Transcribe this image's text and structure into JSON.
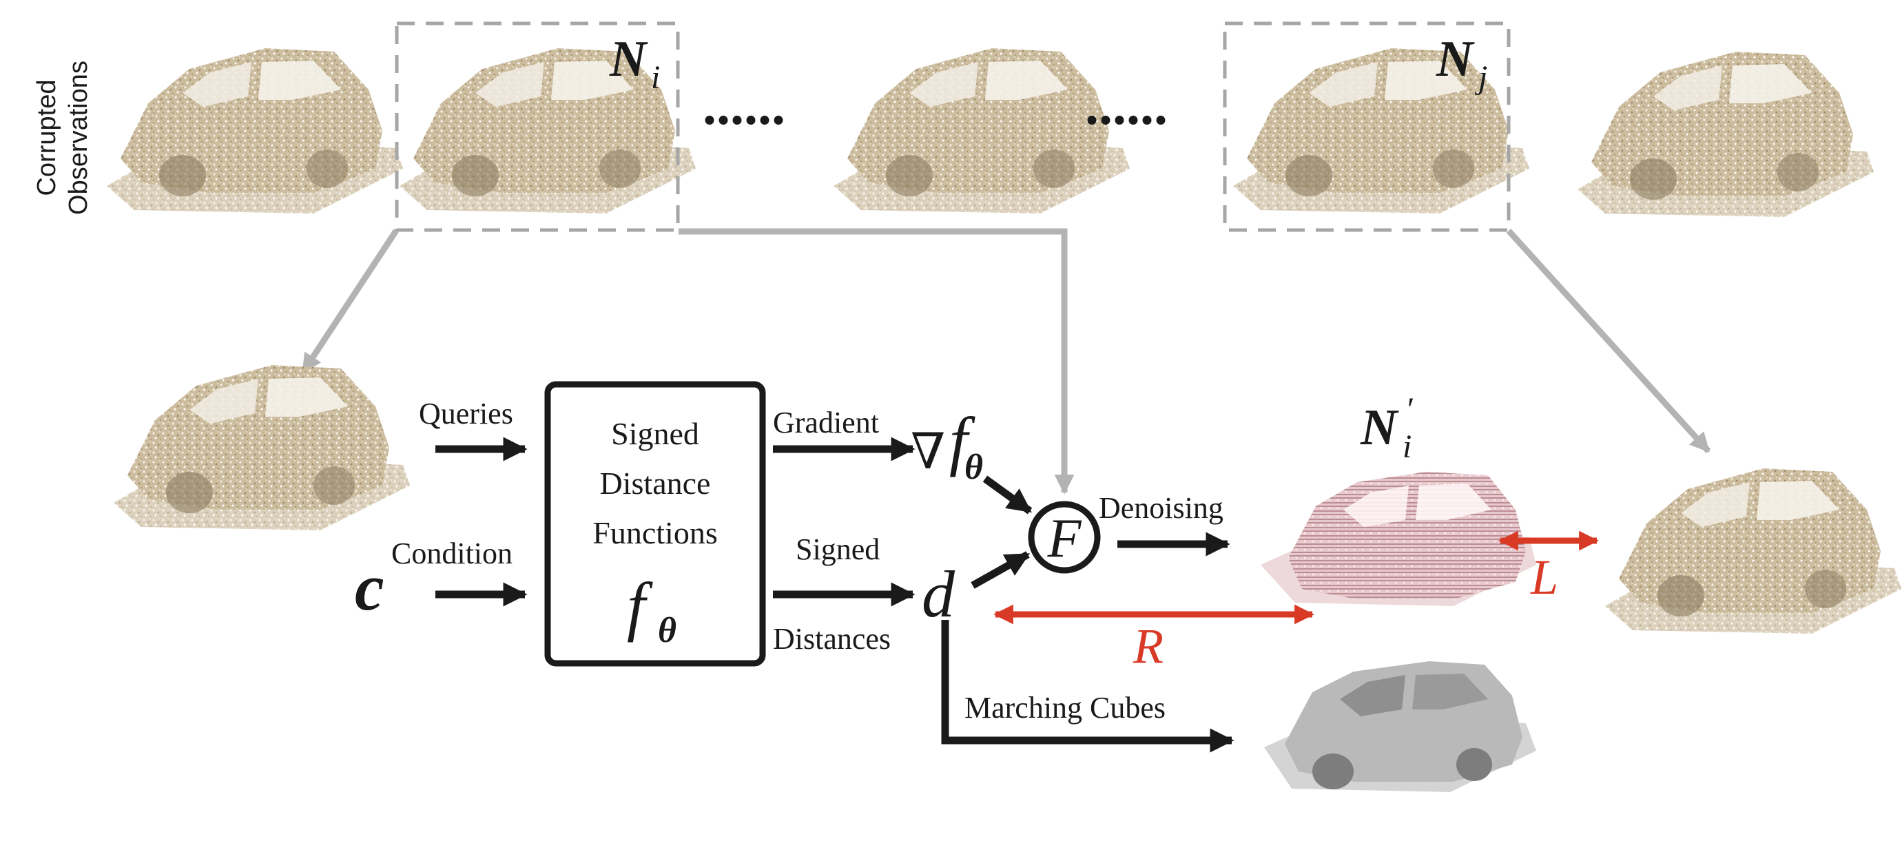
{
  "left_label": {
    "line1": "Corrupted",
    "line2": "Observations"
  },
  "symbols": {
    "Ni": "N",
    "Ni_sub": "i",
    "Nj": "N",
    "Nj_sub": "j",
    "Nip": "N",
    "Nip_sub": "i",
    "Nip_prime": "′",
    "c": "c",
    "nabla": "∇",
    "f": "f",
    "theta": "θ",
    "d": "d",
    "F": "F",
    "L": "L",
    "R": "R"
  },
  "dots": "......",
  "sdf_box": {
    "line1": "Signed",
    "line2": "Distance",
    "line3": "Functions",
    "f": "f",
    "theta": "θ"
  },
  "labels": {
    "queries": "Queries",
    "condition": "Condition",
    "gradient": "Gradient",
    "signed": "Signed",
    "distances": "Distances",
    "denoising": "Denoising",
    "marching_cubes": "Marching Cubes"
  },
  "colors": {
    "dash_box": "#a6a6a6",
    "gray_arrow": "#b3b3b3",
    "black": "#1a1a1a",
    "red": "#d93a26",
    "point_cloud": "#c9b79a",
    "denoised": "#e3c1c6",
    "mesh": "#c9c9c9"
  }
}
